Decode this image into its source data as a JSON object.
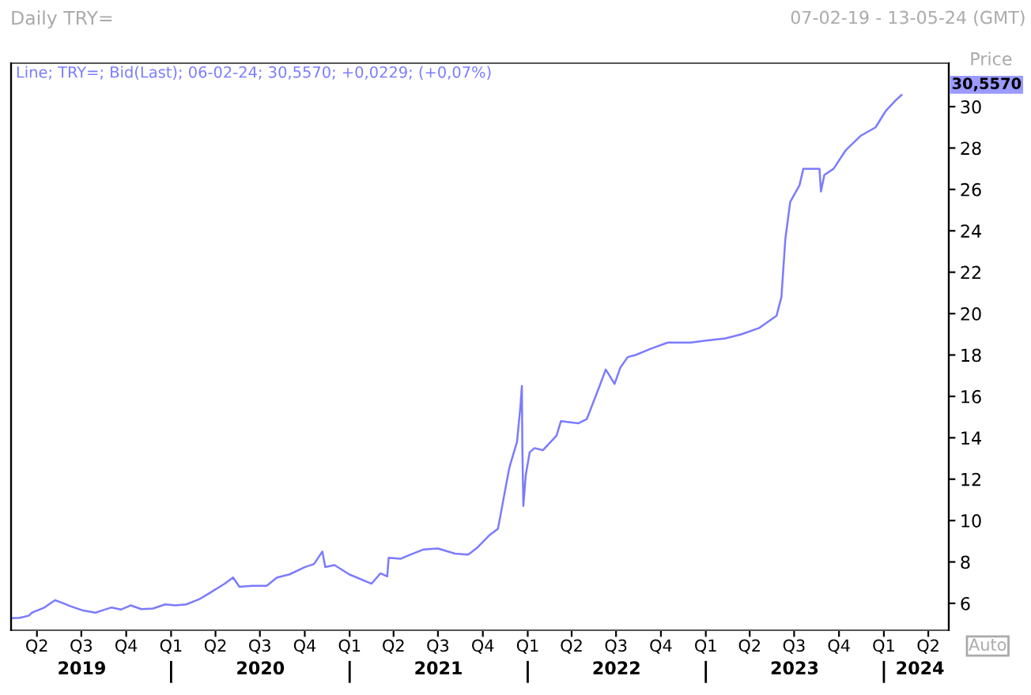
{
  "chart_data": {
    "type": "line",
    "title": "Daily TRY=",
    "subtitle": "Line; TRY=; Bid(Last); 06-02-24; 30,5570; +0,0229; (+0,07%)",
    "ylabel": "Price",
    "annotations": [
      "07-02-19 - 13-05-24 (GMT)",
      "30,5570",
      "Auto"
    ],
    "xlim": [
      "2019-02-07",
      "2024-05-13"
    ],
    "ylim": [
      4.7,
      32.1
    ],
    "xticks": [
      {
        "value": "2019-04-01",
        "label": "Q2"
      },
      {
        "value": "2019-07-01",
        "label": "Q3"
      },
      {
        "value": "2019-10-01",
        "label": "Q4"
      },
      {
        "value": "2020-01-01",
        "label": "Q1"
      },
      {
        "value": "2020-04-01",
        "label": "Q2"
      },
      {
        "value": "2020-07-01",
        "label": "Q3"
      },
      {
        "value": "2020-10-01",
        "label": "Q4"
      },
      {
        "value": "2021-01-01",
        "label": "Q1"
      },
      {
        "value": "2021-04-01",
        "label": "Q2"
      },
      {
        "value": "2021-07-01",
        "label": "Q3"
      },
      {
        "value": "2021-10-01",
        "label": "Q4"
      },
      {
        "value": "2022-01-01",
        "label": "Q1"
      },
      {
        "value": "2022-04-01",
        "label": "Q2"
      },
      {
        "value": "2022-07-01",
        "label": "Q3"
      },
      {
        "value": "2022-10-01",
        "label": "Q4"
      },
      {
        "value": "2023-01-01",
        "label": "Q1"
      },
      {
        "value": "2023-04-01",
        "label": "Q2"
      },
      {
        "value": "2023-07-01",
        "label": "Q3"
      },
      {
        "value": "2023-10-01",
        "label": "Q4"
      },
      {
        "value": "2024-01-01",
        "label": "Q1"
      },
      {
        "value": "2024-04-01",
        "label": "Q2"
      }
    ],
    "x2lim": [
      "2019-02-07",
      "2024-05-13"
    ],
    "x2ticks": [
      {
        "value": "2019-07-02",
        "label": "2019"
      },
      {
        "value": "2020-01-01",
        "label": null
      },
      {
        "value": "2020-07-02",
        "label": "2020"
      },
      {
        "value": "2021-01-01",
        "label": null
      },
      {
        "value": "2021-07-02",
        "label": "2021"
      },
      {
        "value": "2022-01-01",
        "label": null
      },
      {
        "value": "2022-07-02",
        "label": "2022"
      },
      {
        "value": "2023-01-01",
        "label": null
      },
      {
        "value": "2023-07-02",
        "label": "2023"
      },
      {
        "value": "2024-01-01",
        "label": null
      },
      {
        "value": "2024-03-15",
        "label": "2024"
      }
    ],
    "yticks": [
      6,
      8,
      10,
      12,
      14,
      16,
      18,
      20,
      22,
      24,
      26,
      28,
      30
    ],
    "grid": false,
    "marker": "none",
    "line_style": "solid",
    "x": [
      "2019-02-07",
      "2019-02-25",
      "2019-03-15",
      "2019-03-22",
      "2019-03-27",
      "2019-04-15",
      "2019-05-08",
      "2019-05-20",
      "2019-06-10",
      "2019-07-05",
      "2019-07-30",
      "2019-08-12",
      "2019-09-01",
      "2019-09-20",
      "2019-10-10",
      "2019-11-01",
      "2019-11-25",
      "2019-12-20",
      "2020-01-10",
      "2020-02-01",
      "2020-02-28",
      "2020-03-20",
      "2020-04-20",
      "2020-05-07",
      "2020-05-20",
      "2020-06-15",
      "2020-07-15",
      "2020-08-05",
      "2020-08-31",
      "2020-10-01",
      "2020-10-20",
      "2020-11-06",
      "2020-11-12",
      "2020-12-01",
      "2020-12-31",
      "2021-02-15",
      "2021-03-05",
      "2021-03-19",
      "2021-03-22",
      "2021-04-15",
      "2021-05-10",
      "2021-06-01",
      "2021-07-01",
      "2021-08-05",
      "2021-09-01",
      "2021-09-20",
      "2021-10-15",
      "2021-11-01",
      "2021-11-23",
      "2021-11-26",
      "2021-12-10",
      "2021-12-17",
      "2021-12-20",
      "2021-12-21",
      "2021-12-23",
      "2021-12-28",
      "2022-01-05",
      "2022-01-15",
      "2022-02-01",
      "2022-03-01",
      "2022-03-10",
      "2022-04-15",
      "2022-05-02",
      "2022-05-25",
      "2022-06-10",
      "2022-06-28",
      "2022-07-10",
      "2022-07-25",
      "2022-08-10",
      "2022-09-10",
      "2022-10-15",
      "2022-12-01",
      "2023-01-01",
      "2023-02-10",
      "2023-03-15",
      "2023-04-20",
      "2023-05-26",
      "2023-06-05",
      "2023-06-13",
      "2023-06-23",
      "2023-07-12",
      "2023-07-20",
      "2023-08-10",
      "2023-08-22",
      "2023-08-25",
      "2023-09-01",
      "2023-09-20",
      "2023-10-15",
      "2023-11-15",
      "2023-12-15",
      "2024-01-05",
      "2024-01-25",
      "2024-02-06"
    ],
    "series": [
      {
        "color": "#7b7bff",
        "values": [
          5.28,
          5.3,
          5.4,
          5.55,
          5.6,
          5.78,
          6.15,
          6.05,
          5.85,
          5.65,
          5.55,
          5.65,
          5.8,
          5.7,
          5.9,
          5.72,
          5.75,
          5.95,
          5.9,
          5.95,
          6.2,
          6.5,
          6.95,
          7.25,
          6.8,
          6.85,
          6.85,
          7.25,
          7.4,
          7.75,
          7.9,
          8.5,
          7.75,
          7.85,
          7.4,
          6.95,
          7.45,
          7.3,
          8.2,
          8.15,
          8.4,
          8.6,
          8.65,
          8.4,
          8.35,
          8.7,
          9.3,
          9.6,
          12.4,
          12.7,
          13.8,
          15.5,
          16.5,
          13.5,
          10.7,
          12.2,
          13.3,
          13.5,
          13.4,
          14.1,
          14.8,
          14.7,
          14.9,
          16.3,
          17.3,
          16.6,
          17.4,
          17.9,
          18.0,
          18.3,
          18.6,
          18.6,
          18.7,
          18.8,
          19.0,
          19.3,
          19.9,
          20.8,
          23.6,
          25.4,
          26.2,
          27.0,
          27.0,
          27.0,
          25.9,
          26.7,
          27.0,
          27.9,
          28.6,
          29.0,
          29.8,
          30.3,
          30.56
        ]
      }
    ]
  }
}
